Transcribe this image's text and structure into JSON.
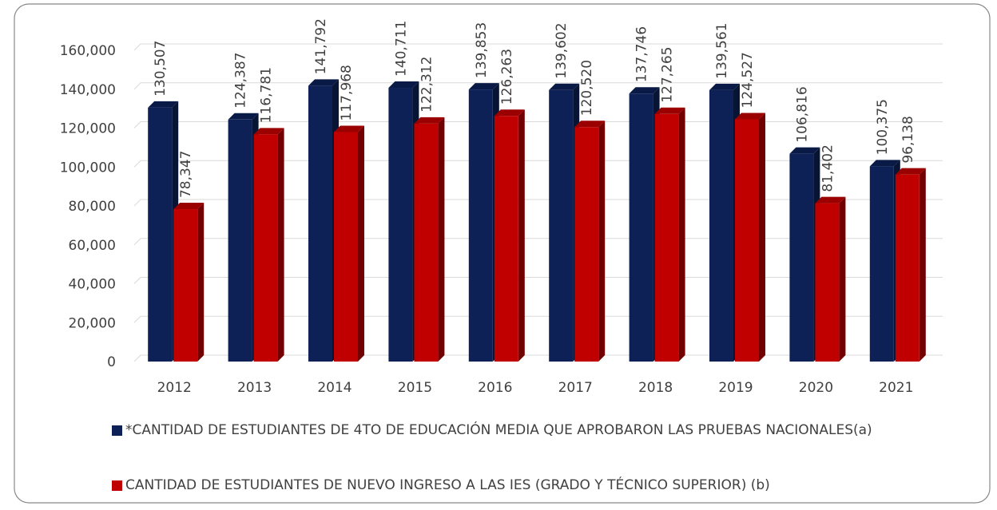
{
  "chart_data": {
    "type": "bar",
    "categories": [
      "2012",
      "2013",
      "2014",
      "2015",
      "2016",
      "2017",
      "2018",
      "2019",
      "2020",
      "2021"
    ],
    "series": [
      {
        "name": "*CANTIDAD DE ESTUDIANTES DE 4TO DE EDUCACIÓN MEDIA QUE APROBARON LAS PRUEBAS NACIONALES(a)",
        "color": "#0d2157",
        "values": [
          130507,
          124387,
          141792,
          140711,
          139853,
          139602,
          137746,
          139561,
          106816,
          100375
        ],
        "value_labels": [
          "130,507",
          "124,387",
          "141,792",
          "140,711",
          "139,853",
          "139,602",
          "137,746",
          "139,561",
          "106,816",
          "100,375"
        ]
      },
      {
        "name": "CANTIDAD DE ESTUDIANTES DE NUEVO INGRESO A LAS IES (GRADO Y TÉCNICO SUPERIOR) (b)",
        "color": "#c00000",
        "values": [
          78347,
          116781,
          117968,
          122312,
          126263,
          120520,
          127265,
          124527,
          81402,
          96138
        ],
        "value_labels": [
          "78,347",
          "116,781",
          "117,968",
          "122,312",
          "126,263",
          "120,520",
          "127,265",
          "124,527",
          "81,402",
          "96,138"
        ]
      }
    ],
    "ylim": [
      0,
      160000
    ],
    "yticks": [
      0,
      {
        "value": 20000,
        "label": "20,000"
      },
      {
        "value": 40000,
        "label": "40,000"
      },
      {
        "value": 60000,
        "label": "60,000"
      },
      {
        "value": 80000,
        "label": "80,000"
      },
      {
        "value": 100000,
        "label": "100,000"
      },
      {
        "value": 120000,
        "label": "120,000"
      },
      {
        "value": 140000,
        "label": "140,000"
      },
      {
        "value": 160000,
        "label": "160,000"
      }
    ],
    "grid": true
  }
}
